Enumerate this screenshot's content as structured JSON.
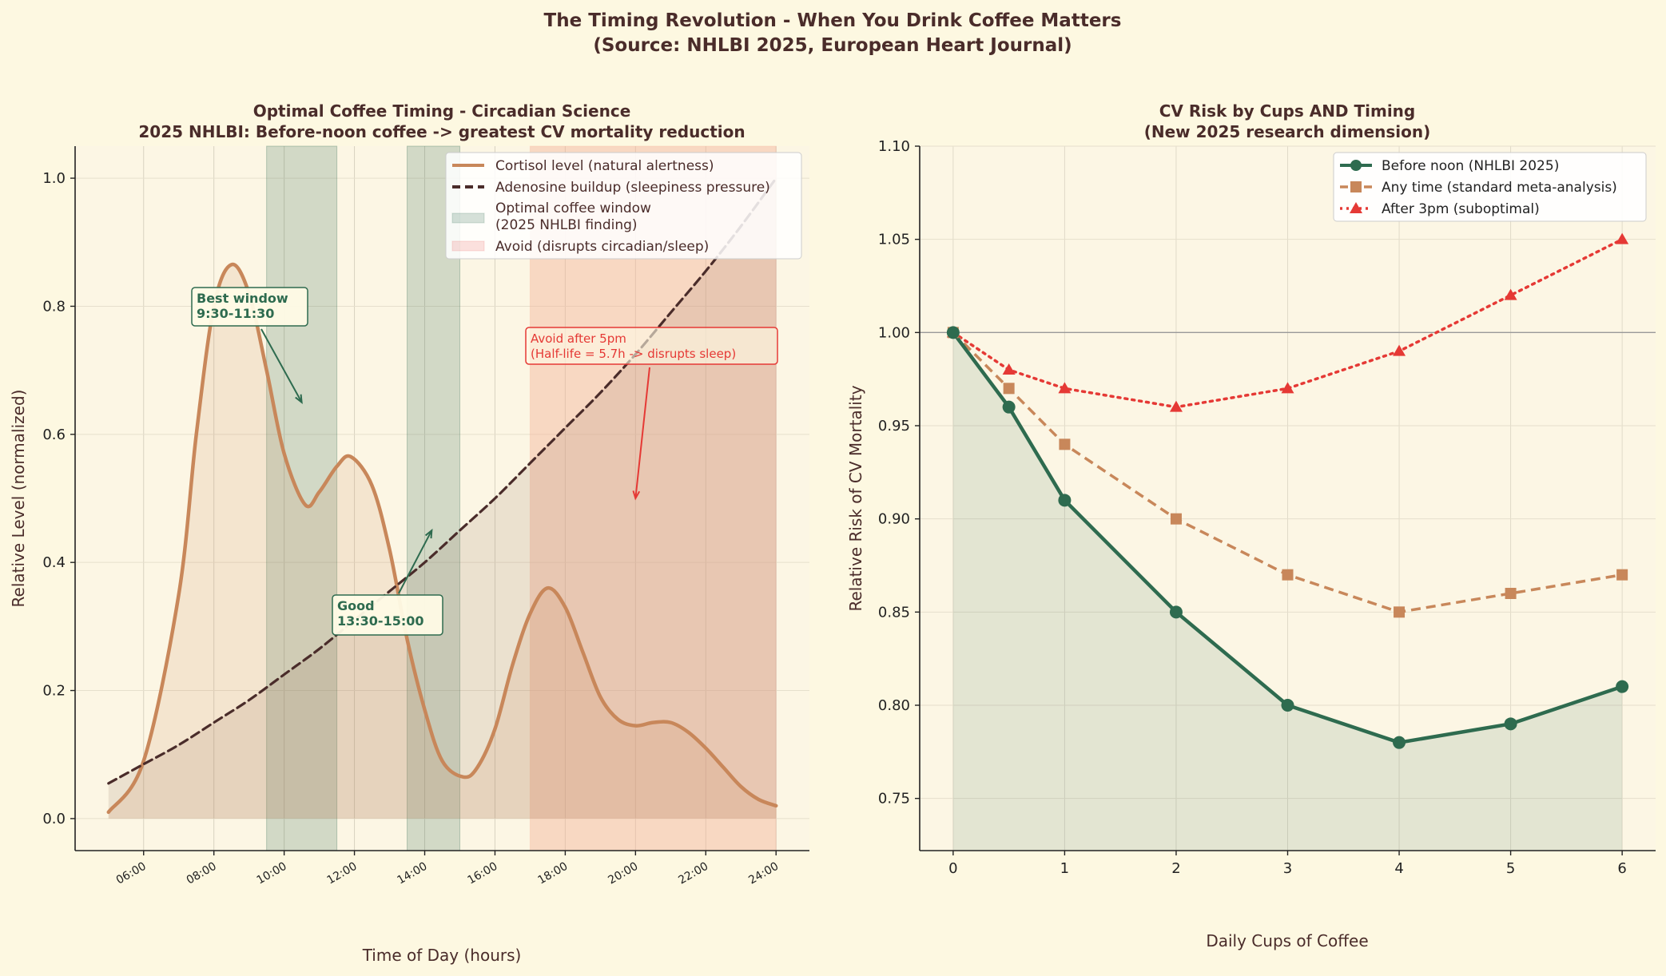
{
  "suptitle": {
    "line1": "The Timing Revolution - When You Drink Coffee Matters",
    "line2": "(Source: NHLBI 2025, European Heart Journal)"
  },
  "colors": {
    "background": "#fdf8e1",
    "axes_background": "#fcf6e4",
    "text": "#4a2c2a",
    "cortisol": "#c8875a",
    "adenosine": "#4a2c2a",
    "optimal_green": "#2e6b4f",
    "avoid_red": "#e53935",
    "avoid_span": "#f4b49a"
  },
  "chart_data": [
    {
      "type": "line",
      "title": "Optimal Coffee Timing - Circadian Science",
      "subtitle": "2025 NHLBI: Before-noon coffee -> greatest CV mortality reduction",
      "xlabel": "Time of Day (hours)",
      "ylabel": "Relative Level (normalized)",
      "xlim": [
        4.05,
        24.95
      ],
      "ylim": [
        -0.05,
        1.05
      ],
      "xticks": [
        6,
        8,
        10,
        12,
        14,
        16,
        18,
        20,
        22,
        24
      ],
      "xtick_labels": [
        "06:00",
        "08:00",
        "10:00",
        "12:00",
        "14:00",
        "16:00",
        "18:00",
        "20:00",
        "22:00",
        "24:00"
      ],
      "yticks": [
        0.0,
        0.2,
        0.4,
        0.6,
        0.8,
        1.0
      ],
      "ytick_labels": [
        "0.0",
        "0.2",
        "0.4",
        "0.6",
        "0.8",
        "1.0"
      ],
      "grid": true,
      "legend_position": "top-right",
      "series": [
        {
          "name": "Cortisol level (natural alertness)",
          "style": "solid",
          "filled": true,
          "x": [
            5,
            6,
            7,
            7.5,
            8,
            8.5,
            9,
            9.5,
            10,
            10.6,
            11,
            11.5,
            11.9,
            12.5,
            13,
            13.5,
            14,
            14.5,
            15.1,
            15.5,
            16,
            16.5,
            17,
            17.5,
            18,
            18.5,
            19,
            19.5,
            20,
            20.5,
            21,
            21.5,
            22,
            22.5,
            23,
            23.5,
            24
          ],
          "y": [
            0.01,
            0.09,
            0.35,
            0.6,
            0.8,
            0.865,
            0.82,
            0.7,
            0.57,
            0.49,
            0.51,
            0.55,
            0.565,
            0.52,
            0.42,
            0.28,
            0.17,
            0.09,
            0.065,
            0.08,
            0.14,
            0.24,
            0.32,
            0.36,
            0.33,
            0.26,
            0.19,
            0.155,
            0.145,
            0.15,
            0.15,
            0.135,
            0.11,
            0.08,
            0.05,
            0.03,
            0.02
          ]
        },
        {
          "name": "Adenosine buildup (sleepiness pressure)",
          "style": "dashed",
          "filled": true,
          "x": [
            5,
            6,
            7,
            8,
            9,
            10,
            11,
            12,
            13,
            14,
            15,
            16,
            17,
            18,
            19,
            20,
            21,
            22,
            23,
            24
          ],
          "y": [
            0.055,
            0.085,
            0.115,
            0.15,
            0.185,
            0.225,
            0.265,
            0.31,
            0.355,
            0.4,
            0.45,
            0.5,
            0.555,
            0.61,
            0.665,
            0.725,
            0.79,
            0.855,
            0.925,
            1.0
          ]
        }
      ],
      "spans": [
        {
          "name": "Optimal coffee window\n(2025 NHLBI finding)",
          "kind": "optimal",
          "ranges": [
            [
              9.5,
              11.5
            ],
            [
              13.5,
              15.0
            ]
          ]
        },
        {
          "name": "Avoid (disrupts circadian/sleep)",
          "kind": "avoid",
          "ranges": [
            [
              17,
              24
            ]
          ]
        }
      ],
      "legend": [
        "Cortisol level (natural alertness)",
        "Adenosine buildup (sleepiness pressure)",
        "Optimal coffee window",
        "(2025 NHLBI finding)",
        "Avoid (disrupts circadian/sleep)"
      ],
      "annotations": [
        {
          "lines": [
            "Best window",
            "9:30-11:30"
          ],
          "tip": [
            10.5,
            0.65
          ],
          "kind": "optimal"
        },
        {
          "lines": [
            "Good",
            "13:30-15:00"
          ],
          "tip": [
            14.2,
            0.45
          ],
          "kind": "optimal"
        },
        {
          "lines": [
            "Avoid after 5pm",
            "(Half-life = 5.7h -> disrupts sleep)"
          ],
          "tip": [
            20,
            0.5
          ],
          "kind": "avoid"
        }
      ]
    },
    {
      "type": "line",
      "title": "CV Risk by Cups AND Timing",
      "subtitle": "(New 2025 research dimension)",
      "xlabel": "Daily Cups of Coffee",
      "ylabel": "Relative Risk of CV Mortality",
      "xlim": [
        -0.3,
        6.3
      ],
      "ylim": [
        0.722,
        1.1
      ],
      "xticks": [
        0,
        1,
        2,
        3,
        4,
        5,
        6
      ],
      "xtick_labels": [
        "0",
        "1",
        "2",
        "3",
        "4",
        "5",
        "6"
      ],
      "yticks": [
        0.75,
        0.8,
        0.85,
        0.9,
        0.95,
        1.0,
        1.05,
        1.1
      ],
      "ytick_labels": [
        "0.75",
        "0.80",
        "0.85",
        "0.90",
        "0.95",
        "1.00",
        "1.05",
        "1.10"
      ],
      "reference_line": 1.0,
      "grid": true,
      "legend_position": "top-right",
      "x": [
        0,
        0.5,
        1,
        2,
        3,
        4,
        5,
        6
      ],
      "series": [
        {
          "name": "Before noon (NHLBI 2025)",
          "marker": "circle",
          "style": "solid",
          "filled": true,
          "values": [
            1.0,
            0.96,
            0.91,
            0.85,
            0.8,
            0.78,
            0.79,
            0.81
          ]
        },
        {
          "name": "Any time (standard meta-analysis)",
          "marker": "square",
          "style": "dashed",
          "values": [
            1.0,
            0.97,
            0.94,
            0.9,
            0.87,
            0.85,
            0.86,
            0.87
          ]
        },
        {
          "name": "After 3pm (suboptimal)",
          "marker": "triangle",
          "style": "dotted",
          "values": [
            1.0,
            0.98,
            0.97,
            0.96,
            0.97,
            0.99,
            1.02,
            1.05
          ]
        }
      ]
    }
  ]
}
